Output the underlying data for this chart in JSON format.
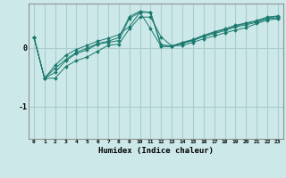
{
  "xlabel": "Humidex (Indice chaleur)",
  "bg_color": "#cce8e8",
  "grid_color": "#aacece",
  "line_color": "#1a7a6e",
  "x_min": -0.5,
  "x_max": 23.5,
  "y_min": -1.55,
  "y_max": 0.75,
  "yticks": [
    -1,
    0
  ],
  "xticks": [
    0,
    1,
    2,
    3,
    4,
    5,
    6,
    7,
    8,
    9,
    10,
    11,
    12,
    13,
    14,
    15,
    16,
    17,
    18,
    19,
    20,
    21,
    22,
    23
  ],
  "series": [
    [
      0.18,
      -0.52,
      -0.52,
      -0.32,
      -0.22,
      -0.16,
      -0.06,
      0.04,
      0.06,
      0.32,
      0.52,
      0.52,
      0.18,
      0.03,
      0.04,
      0.09,
      0.15,
      0.2,
      0.25,
      0.3,
      0.34,
      0.41,
      0.47,
      0.49
    ],
    [
      0.18,
      -0.52,
      -0.42,
      -0.22,
      -0.1,
      -0.04,
      0.06,
      0.09,
      0.12,
      0.5,
      0.6,
      0.32,
      0.02,
      0.02,
      0.07,
      0.12,
      0.19,
      0.24,
      0.29,
      0.35,
      0.39,
      0.43,
      0.49,
      0.51
    ],
    [
      0.18,
      -0.52,
      -0.35,
      -0.2,
      -0.08,
      -0.01,
      0.07,
      0.11,
      0.17,
      0.53,
      0.62,
      0.6,
      0.02,
      0.02,
      0.08,
      0.13,
      0.2,
      0.26,
      0.31,
      0.37,
      0.41,
      0.45,
      0.51,
      0.53
    ],
    [
      0.18,
      -0.52,
      -0.3,
      -0.13,
      -0.03,
      0.04,
      0.11,
      0.16,
      0.22,
      0.36,
      0.6,
      0.6,
      0.05,
      0.03,
      0.09,
      0.14,
      0.21,
      0.27,
      0.32,
      0.38,
      0.42,
      0.46,
      0.52,
      0.54
    ]
  ]
}
